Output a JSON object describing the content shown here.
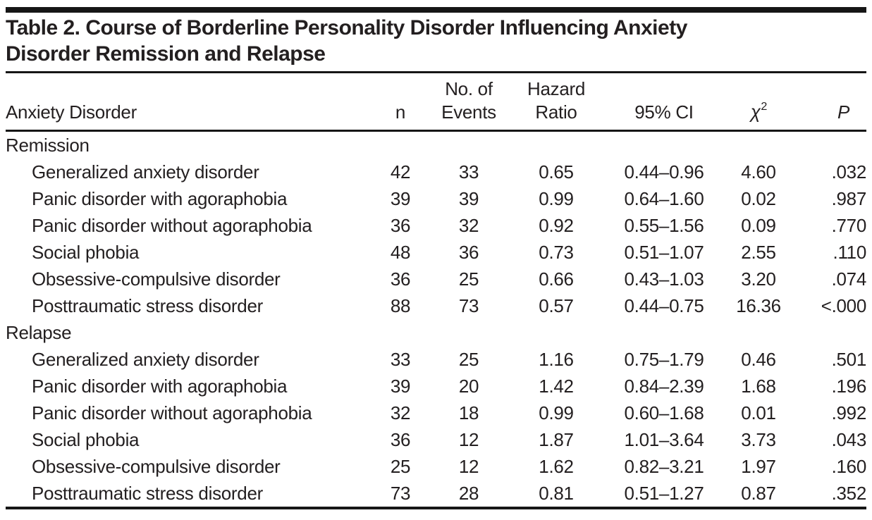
{
  "title": {
    "line1": "Table 2. Course of Borderline Personality Disorder Influencing Anxiety",
    "line2": "Disorder Remission and Relapse"
  },
  "columns": [
    {
      "label": "Anxiety Disorder"
    },
    {
      "label": "n"
    },
    {
      "line1": "No. of",
      "line2": "Events"
    },
    {
      "line1": "Hazard",
      "line2": "Ratio"
    },
    {
      "label": "95% CI"
    },
    {
      "label": "χ",
      "superscript": "2"
    },
    {
      "label": "P"
    }
  ],
  "sections": [
    {
      "header": "Remission",
      "rows": [
        {
          "disorder": "Generalized anxiety disorder",
          "n": "42",
          "events": "33",
          "hazard_ratio": "0.65",
          "ci_95": "0.44–0.96",
          "chi_square": "4.60",
          "p": ".032"
        },
        {
          "disorder": "Panic disorder with agoraphobia",
          "n": "39",
          "events": "39",
          "hazard_ratio": "0.99",
          "ci_95": "0.64–1.60",
          "chi_square": "0.02",
          "p": ".987"
        },
        {
          "disorder": "Panic disorder without agoraphobia",
          "n": "36",
          "events": "32",
          "hazard_ratio": "0.92",
          "ci_95": "0.55–1.56",
          "chi_square": "0.09",
          "p": ".770"
        },
        {
          "disorder": "Social phobia",
          "n": "48",
          "events": "36",
          "hazard_ratio": "0.73",
          "ci_95": "0.51–1.07",
          "chi_square": "2.55",
          "p": ".110"
        },
        {
          "disorder": "Obsessive-compulsive disorder",
          "n": "36",
          "events": "25",
          "hazard_ratio": "0.66",
          "ci_95": "0.43–1.03",
          "chi_square": "3.20",
          "p": ".074"
        },
        {
          "disorder": "Posttraumatic stress disorder",
          "n": "88",
          "events": "73",
          "hazard_ratio": "0.57",
          "ci_95": "0.44–0.75",
          "chi_square": "16.36",
          "p": "<.000"
        }
      ]
    },
    {
      "header": "Relapse",
      "rows": [
        {
          "disorder": "Generalized anxiety disorder",
          "n": "33",
          "events": "25",
          "hazard_ratio": "1.16",
          "ci_95": "0.75–1.79",
          "chi_square": "0.46",
          "p": ".501"
        },
        {
          "disorder": "Panic disorder with agoraphobia",
          "n": "39",
          "events": "20",
          "hazard_ratio": "1.42",
          "ci_95": "0.84–2.39",
          "chi_square": "1.68",
          "p": ".196"
        },
        {
          "disorder": "Panic disorder without agoraphobia",
          "n": "32",
          "events": "18",
          "hazard_ratio": "0.99",
          "ci_95": "0.60–1.68",
          "chi_square": "0.01",
          "p": ".992"
        },
        {
          "disorder": "Social phobia",
          "n": "36",
          "events": "12",
          "hazard_ratio": "1.87",
          "ci_95": "1.01–3.64",
          "chi_square": "3.73",
          "p": ".043"
        },
        {
          "disorder": "Obsessive-compulsive disorder",
          "n": "25",
          "events": "12",
          "hazard_ratio": "1.62",
          "ci_95": "0.82–3.21",
          "chi_square": "1.97",
          "p": ".160"
        },
        {
          "disorder": "Posttraumatic stress disorder",
          "n": "73",
          "events": "28",
          "hazard_ratio": "0.81",
          "ci_95": "0.51–1.27",
          "chi_square": "0.87",
          "p": ".352"
        }
      ]
    }
  ],
  "colors": {
    "text": "#231f20",
    "rule": "#161616",
    "background": "#ffffff"
  }
}
